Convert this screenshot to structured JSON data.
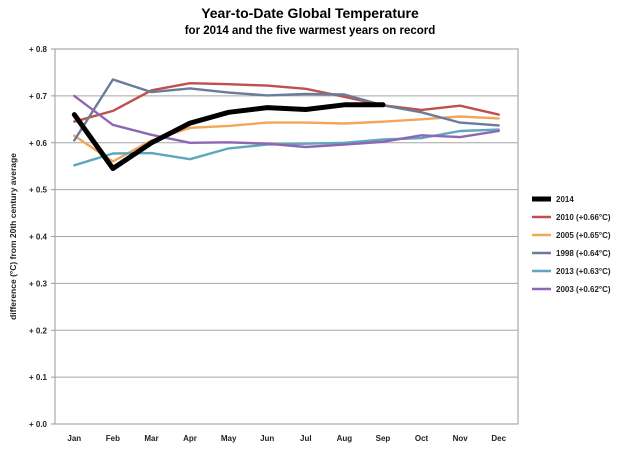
{
  "chart_data": {
    "type": "line",
    "title": "Year-to-Date Global Temperature",
    "subtitle": "for 2014 and the five warmest years on record",
    "xlabel": "",
    "ylabel": "difference (°C) from 20th century average",
    "categories": [
      "Jan",
      "Feb",
      "Mar",
      "Apr",
      "May",
      "Jun",
      "Jul",
      "Aug",
      "Sep",
      "Oct",
      "Nov",
      "Dec"
    ],
    "ylim": [
      0.0,
      0.8
    ],
    "yticks": [
      "+ 0.0",
      "+ 0.1",
      "+ 0.2",
      "+ 0.3",
      "+ 0.4",
      "+ 0.5",
      "+ 0.6",
      "+ 0.7",
      "+ 0.8"
    ],
    "grid": "horizontal",
    "legend_position": "right",
    "series": [
      {
        "name": "2014",
        "color": "#000000",
        "width": "thick",
        "values": [
          0.66,
          0.545,
          0.6,
          0.642,
          0.665,
          0.675,
          0.671,
          0.681,
          0.681,
          null,
          null,
          null
        ]
      },
      {
        "name": "2010 (+0.66°C)",
        "color": "#c0504d",
        "values": [
          0.645,
          0.668,
          0.712,
          0.727,
          0.725,
          0.722,
          0.715,
          0.698,
          0.68,
          0.67,
          0.679,
          0.66
        ]
      },
      {
        "name": "2005 (+0.65°C)",
        "color": "#f2a65a",
        "values": [
          0.615,
          0.56,
          0.605,
          0.632,
          0.636,
          0.643,
          0.643,
          0.641,
          0.645,
          0.65,
          0.656,
          0.652
        ]
      },
      {
        "name": "1998 (+0.64°C)",
        "color": "#6b7b99",
        "values": [
          0.605,
          0.735,
          0.708,
          0.716,
          0.707,
          0.701,
          0.704,
          0.703,
          0.68,
          0.665,
          0.643,
          0.637
        ]
      },
      {
        "name": "2013 (+0.63°C)",
        "color": "#5fa7be",
        "values": [
          0.552,
          0.577,
          0.578,
          0.565,
          0.588,
          0.596,
          0.598,
          0.6,
          0.607,
          0.61,
          0.625,
          0.628
        ]
      },
      {
        "name": "2003 (+0.62°C)",
        "color": "#8e66b3",
        "values": [
          0.7,
          0.638,
          0.617,
          0.6,
          0.601,
          0.598,
          0.591,
          0.596,
          0.602,
          0.616,
          0.612,
          0.625
        ]
      }
    ]
  }
}
